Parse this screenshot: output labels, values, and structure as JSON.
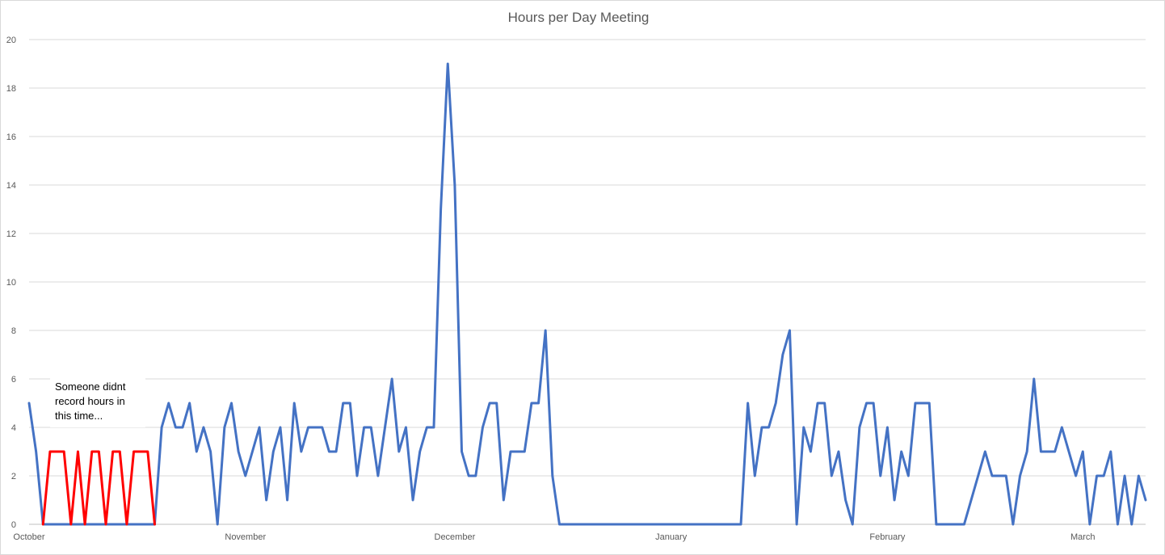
{
  "chart_data": {
    "type": "line",
    "title": "Hours per Day Meeting",
    "xlabel": "",
    "ylabel": "",
    "ylim": [
      0,
      20
    ],
    "yticks": [
      0,
      2,
      4,
      6,
      8,
      10,
      12,
      14,
      16,
      18,
      20
    ],
    "x_tick_labels": [
      "October",
      "November",
      "December",
      "January",
      "February",
      "March"
    ],
    "xlim": [
      "2018-10-01",
      "2019-03-10"
    ],
    "grid": "horizontal",
    "legend": "none",
    "colors": {
      "main": "#4472c4",
      "highlight": "#ff0000",
      "grid": "#d9d9d9",
      "axis": "#bfbfbf",
      "text": "#595959"
    },
    "annotation": {
      "lines": [
        "Someone didnt",
        "record hours in",
        "this time..."
      ]
    },
    "series": [
      {
        "color": "#4472c4",
        "points": [
          [
            "2018-10-01",
            5
          ],
          [
            "2018-10-02",
            3
          ],
          [
            "2018-10-03",
            0
          ],
          [
            "2018-10-19",
            0
          ],
          [
            "2018-10-20",
            4
          ],
          [
            "2018-10-21",
            5
          ],
          [
            "2018-10-22",
            4
          ],
          [
            "2018-10-23",
            4
          ],
          [
            "2018-10-24",
            5
          ],
          [
            "2018-10-25",
            3
          ],
          [
            "2018-10-26",
            4
          ],
          [
            "2018-10-27",
            3
          ],
          [
            "2018-10-28",
            0
          ],
          [
            "2018-10-29",
            4
          ],
          [
            "2018-10-30",
            5
          ],
          [
            "2018-10-31",
            3
          ],
          [
            "2018-11-01",
            2
          ],
          [
            "2018-11-02",
            3
          ],
          [
            "2018-11-03",
            4
          ],
          [
            "2018-11-04",
            1
          ],
          [
            "2018-11-05",
            3
          ],
          [
            "2018-11-06",
            4
          ],
          [
            "2018-11-07",
            1
          ],
          [
            "2018-11-08",
            5
          ],
          [
            "2018-11-09",
            3
          ],
          [
            "2018-11-10",
            4
          ],
          [
            "2018-11-11",
            4
          ],
          [
            "2018-11-12",
            4
          ],
          [
            "2018-11-13",
            3
          ],
          [
            "2018-11-14",
            3
          ],
          [
            "2018-11-15",
            5
          ],
          [
            "2018-11-16",
            5
          ],
          [
            "2018-11-17",
            2
          ],
          [
            "2018-11-18",
            4
          ],
          [
            "2018-11-19",
            4
          ],
          [
            "2018-11-20",
            2
          ],
          [
            "2018-11-21",
            4
          ],
          [
            "2018-11-22",
            6
          ],
          [
            "2018-11-23",
            3
          ],
          [
            "2018-11-24",
            4
          ],
          [
            "2018-11-25",
            1
          ],
          [
            "2018-11-26",
            3
          ],
          [
            "2018-11-27",
            4
          ],
          [
            "2018-11-28",
            4
          ],
          [
            "2018-11-29",
            13
          ],
          [
            "2018-11-30",
            19
          ],
          [
            "2018-12-01",
            14
          ],
          [
            "2018-12-02",
            3
          ],
          [
            "2018-12-03",
            2
          ],
          [
            "2018-12-04",
            2
          ],
          [
            "2018-12-05",
            4
          ],
          [
            "2018-12-06",
            5
          ],
          [
            "2018-12-07",
            5
          ],
          [
            "2018-12-08",
            1
          ],
          [
            "2018-12-09",
            3
          ],
          [
            "2018-12-10",
            3
          ],
          [
            "2018-12-11",
            3
          ],
          [
            "2018-12-12",
            5
          ],
          [
            "2018-12-13",
            5
          ],
          [
            "2018-12-14",
            8
          ],
          [
            "2018-12-15",
            2
          ],
          [
            "2018-12-16",
            0
          ],
          [
            "2019-01-11",
            0
          ],
          [
            "2019-01-12",
            5
          ],
          [
            "2019-01-13",
            2
          ],
          [
            "2019-01-14",
            4
          ],
          [
            "2019-01-15",
            4
          ],
          [
            "2019-01-16",
            5
          ],
          [
            "2019-01-17",
            7
          ],
          [
            "2019-01-18",
            8
          ],
          [
            "2019-01-19",
            0
          ],
          [
            "2019-01-20",
            4
          ],
          [
            "2019-01-21",
            3
          ],
          [
            "2019-01-22",
            5
          ],
          [
            "2019-01-23",
            5
          ],
          [
            "2019-01-24",
            2
          ],
          [
            "2019-01-25",
            3
          ],
          [
            "2019-01-26",
            1
          ],
          [
            "2019-01-27",
            0
          ],
          [
            "2019-01-28",
            4
          ],
          [
            "2019-01-29",
            5
          ],
          [
            "2019-01-30",
            5
          ],
          [
            "2019-01-31",
            2
          ],
          [
            "2019-02-01",
            4
          ],
          [
            "2019-02-02",
            1
          ],
          [
            "2019-02-03",
            3
          ],
          [
            "2019-02-04",
            2
          ],
          [
            "2019-02-05",
            5
          ],
          [
            "2019-02-06",
            5
          ],
          [
            "2019-02-07",
            5
          ],
          [
            "2019-02-08",
            0
          ],
          [
            "2019-02-12",
            0
          ],
          [
            "2019-02-15",
            3
          ],
          [
            "2019-02-16",
            2
          ],
          [
            "2019-02-17",
            2
          ],
          [
            "2019-02-18",
            2
          ],
          [
            "2019-02-19",
            0
          ],
          [
            "2019-02-20",
            2
          ],
          [
            "2019-02-21",
            3
          ],
          [
            "2019-02-22",
            6
          ],
          [
            "2019-02-23",
            3
          ],
          [
            "2019-02-24",
            3
          ],
          [
            "2019-02-25",
            3
          ],
          [
            "2019-02-26",
            4
          ],
          [
            "2019-02-27",
            3
          ],
          [
            "2019-02-28",
            2
          ],
          [
            "2019-03-01",
            3
          ],
          [
            "2019-03-02",
            0
          ],
          [
            "2019-03-03",
            2
          ],
          [
            "2019-03-04",
            2
          ],
          [
            "2019-03-05",
            3
          ],
          [
            "2019-03-06",
            0
          ],
          [
            "2019-03-07",
            2
          ],
          [
            "2019-03-08",
            0
          ],
          [
            "2019-03-09",
            2
          ],
          [
            "2019-03-10",
            1
          ]
        ]
      },
      {
        "color": "#ff0000",
        "points": [
          [
            "2018-10-03",
            0
          ],
          [
            "2018-10-04",
            3
          ],
          [
            "2018-10-05",
            3
          ],
          [
            "2018-10-06",
            3
          ],
          [
            "2018-10-07",
            0
          ],
          [
            "2018-10-08",
            3
          ],
          [
            "2018-10-09",
            0
          ],
          [
            "2018-10-10",
            3
          ],
          [
            "2018-10-11",
            3
          ],
          [
            "2018-10-12",
            0
          ],
          [
            "2018-10-13",
            3
          ],
          [
            "2018-10-14",
            3
          ],
          [
            "2018-10-15",
            0
          ],
          [
            "2018-10-16",
            3
          ],
          [
            "2018-10-17",
            3
          ],
          [
            "2018-10-18",
            3
          ],
          [
            "2018-10-19",
            0
          ]
        ]
      }
    ]
  }
}
